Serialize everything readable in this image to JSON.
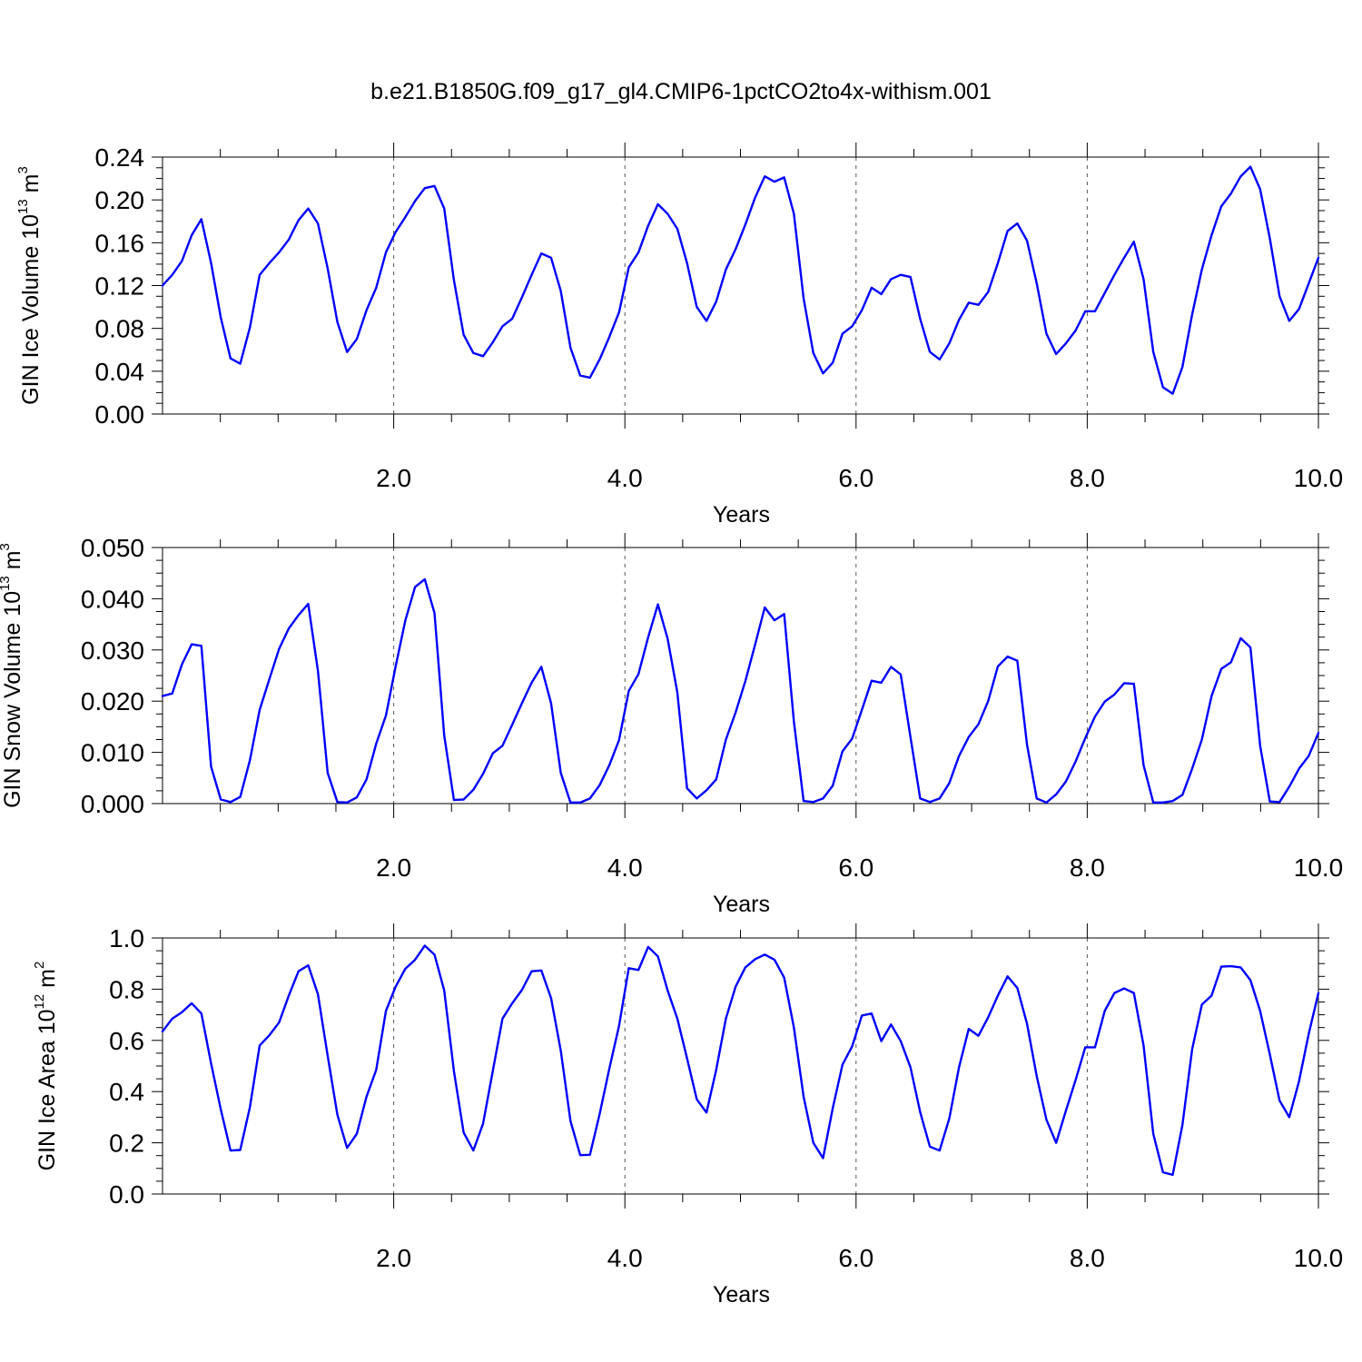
{
  "title": "b.e21.B1850G.f09_g17_gl4.CMIP6-1pctCO2to4x-withism.001",
  "colors": {
    "series": "#0000ff",
    "axis": "#000000",
    "grid": "#555555"
  },
  "chart_data": [
    {
      "type": "line",
      "xlabel": "Years",
      "ylabel": {
        "text": "GIN Ice Volume 10",
        "sup": "13",
        "unit": " m",
        "unit_sup": "3"
      },
      "xlim": [
        0.0,
        10.0
      ],
      "ylim": [
        0.0,
        0.24
      ],
      "xticks": [
        2.0,
        4.0,
        6.0,
        8.0,
        10.0
      ],
      "xtick_labels": [
        "2.0",
        "4.0",
        "6.0",
        "8.0",
        "10.0"
      ],
      "yticks": [
        0.0,
        0.04,
        0.08,
        0.12,
        0.16,
        0.2,
        0.24
      ],
      "ytick_labels": [
        "0.00",
        "0.04",
        "0.08",
        "0.12",
        "0.16",
        "0.20",
        "0.24"
      ],
      "grid": "vertical dashed at major x ticks",
      "series": [
        {
          "values": [
            0.12,
            0.13,
            0.143,
            0.167,
            0.182,
            0.141,
            0.09,
            0.052,
            0.047,
            0.081,
            0.13,
            0.141,
            0.151,
            0.163,
            0.181,
            0.192,
            0.178,
            0.136,
            0.086,
            0.058,
            0.07,
            0.097,
            0.118,
            0.151,
            0.17,
            0.184,
            0.199,
            0.211,
            0.213,
            0.192,
            0.125,
            0.074,
            0.057,
            0.054,
            0.067,
            0.082,
            0.089,
            0.109,
            0.13,
            0.15,
            0.146,
            0.115,
            0.062,
            0.036,
            0.034,
            0.051,
            0.072,
            0.095,
            0.137,
            0.151,
            0.176,
            0.196,
            0.187,
            0.173,
            0.141,
            0.1,
            0.087,
            0.105,
            0.135,
            0.154,
            0.177,
            0.202,
            0.222,
            0.217,
            0.221,
            0.187,
            0.108,
            0.057,
            0.038,
            0.048,
            0.075,
            0.082,
            0.097,
            0.118,
            0.112,
            0.126,
            0.13,
            0.128,
            0.089,
            0.058,
            0.051,
            0.066,
            0.088,
            0.104,
            0.102,
            0.114,
            0.141,
            0.171,
            0.178,
            0.162,
            0.122,
            0.075,
            0.056,
            0.066,
            0.078,
            0.096,
            0.096,
            0.113,
            0.13,
            0.146,
            0.161,
            0.126,
            0.058,
            0.025,
            0.019,
            0.044,
            0.093,
            0.135,
            0.167,
            0.194,
            0.206,
            0.222,
            0.231,
            0.21,
            0.164,
            0.11,
            0.087,
            0.098,
            0.122,
            0.146
          ]
        }
      ]
    },
    {
      "type": "line",
      "xlabel": "Years",
      "ylabel": {
        "text": "GIN Snow Volume 10",
        "sup": "13",
        "unit": " m",
        "unit_sup": "3"
      },
      "xlim": [
        0.0,
        10.0
      ],
      "ylim": [
        0.0,
        0.05
      ],
      "xticks": [
        2.0,
        4.0,
        6.0,
        8.0,
        10.0
      ],
      "xtick_labels": [
        "2.0",
        "4.0",
        "6.0",
        "8.0",
        "10.0"
      ],
      "yticks": [
        0.0,
        0.01,
        0.02,
        0.03,
        0.04,
        0.05
      ],
      "ytick_labels": [
        "0.000",
        "0.010",
        "0.020",
        "0.030",
        "0.040",
        "0.050"
      ],
      "grid": "vertical dashed at major x ticks",
      "series": [
        {
          "values": [
            0.021,
            0.0215,
            0.0272,
            0.0311,
            0.0308,
            0.0072,
            0.0008,
            0.0003,
            0.0013,
            0.0085,
            0.0183,
            0.0243,
            0.0302,
            0.0342,
            0.0368,
            0.039,
            0.0259,
            0.006,
            0.0003,
            0.0002,
            0.0012,
            0.0047,
            0.0117,
            0.0172,
            0.0268,
            0.0358,
            0.0423,
            0.0438,
            0.0372,
            0.0133,
            0.0007,
            0.0008,
            0.0027,
            0.0058,
            0.0098,
            0.0113,
            0.0154,
            0.0196,
            0.0236,
            0.0267,
            0.0196,
            0.006,
            0.0002,
            0.0002,
            0.001,
            0.0036,
            0.0075,
            0.0124,
            0.022,
            0.0253,
            0.0325,
            0.0389,
            0.0322,
            0.0217,
            0.003,
            0.001,
            0.0026,
            0.0047,
            0.0125,
            0.0178,
            0.0239,
            0.031,
            0.0383,
            0.0358,
            0.037,
            0.016,
            0.0005,
            0.0003,
            0.001,
            0.0035,
            0.0102,
            0.0127,
            0.0183,
            0.024,
            0.0236,
            0.0267,
            0.0252,
            0.013,
            0.001,
            0.0003,
            0.001,
            0.004,
            0.0093,
            0.013,
            0.0155,
            0.02,
            0.0268,
            0.0287,
            0.0279,
            0.0115,
            0.001,
            0.0002,
            0.0018,
            0.0043,
            0.0082,
            0.0128,
            0.017,
            0.0199,
            0.0213,
            0.0235,
            0.0234,
            0.0075,
            0.0002,
            0.0002,
            0.0005,
            0.0017,
            0.0068,
            0.0125,
            0.021,
            0.0263,
            0.0276,
            0.0323,
            0.0305,
            0.0113,
            0.0004,
            0.0003,
            0.0033,
            0.0068,
            0.0093,
            0.0138
          ]
        }
      ]
    },
    {
      "type": "line",
      "xlabel": "Years",
      "ylabel": {
        "text": "GIN Ice Area 10",
        "sup": "12",
        "unit": " m",
        "unit_sup": "2"
      },
      "xlim": [
        0.0,
        10.0
      ],
      "ylim": [
        0.0,
        1.0
      ],
      "xticks": [
        2.0,
        4.0,
        6.0,
        8.0,
        10.0
      ],
      "xtick_labels": [
        "2.0",
        "4.0",
        "6.0",
        "8.0",
        "10.0"
      ],
      "yticks": [
        0.0,
        0.2,
        0.4,
        0.6,
        0.8,
        1.0
      ],
      "ytick_labels": [
        "0.0",
        "0.2",
        "0.4",
        "0.6",
        "0.8",
        "1.0"
      ],
      "grid": "vertical dashed at major x ticks",
      "series": [
        {
          "values": [
            0.635,
            0.685,
            0.71,
            0.745,
            0.705,
            0.51,
            0.33,
            0.17,
            0.172,
            0.34,
            0.58,
            0.62,
            0.67,
            0.775,
            0.87,
            0.893,
            0.78,
            0.54,
            0.31,
            0.18,
            0.235,
            0.38,
            0.485,
            0.715,
            0.81,
            0.88,
            0.915,
            0.97,
            0.935,
            0.795,
            0.48,
            0.24,
            0.17,
            0.275,
            0.48,
            0.685,
            0.745,
            0.797,
            0.87,
            0.873,
            0.765,
            0.56,
            0.285,
            0.152,
            0.153,
            0.312,
            0.49,
            0.657,
            0.882,
            0.875,
            0.965,
            0.928,
            0.795,
            0.685,
            0.53,
            0.37,
            0.318,
            0.485,
            0.685,
            0.81,
            0.885,
            0.917,
            0.935,
            0.915,
            0.845,
            0.65,
            0.38,
            0.2,
            0.14,
            0.335,
            0.505,
            0.577,
            0.697,
            0.705,
            0.597,
            0.662,
            0.597,
            0.495,
            0.32,
            0.185,
            0.17,
            0.295,
            0.495,
            0.645,
            0.618,
            0.69,
            0.775,
            0.85,
            0.805,
            0.665,
            0.46,
            0.29,
            0.2,
            0.325,
            0.445,
            0.573,
            0.573,
            0.715,
            0.785,
            0.803,
            0.785,
            0.58,
            0.235,
            0.085,
            0.075,
            0.27,
            0.565,
            0.74,
            0.775,
            0.888,
            0.89,
            0.885,
            0.835,
            0.715,
            0.545,
            0.365,
            0.3,
            0.44,
            0.625,
            0.785
          ]
        }
      ]
    }
  ]
}
